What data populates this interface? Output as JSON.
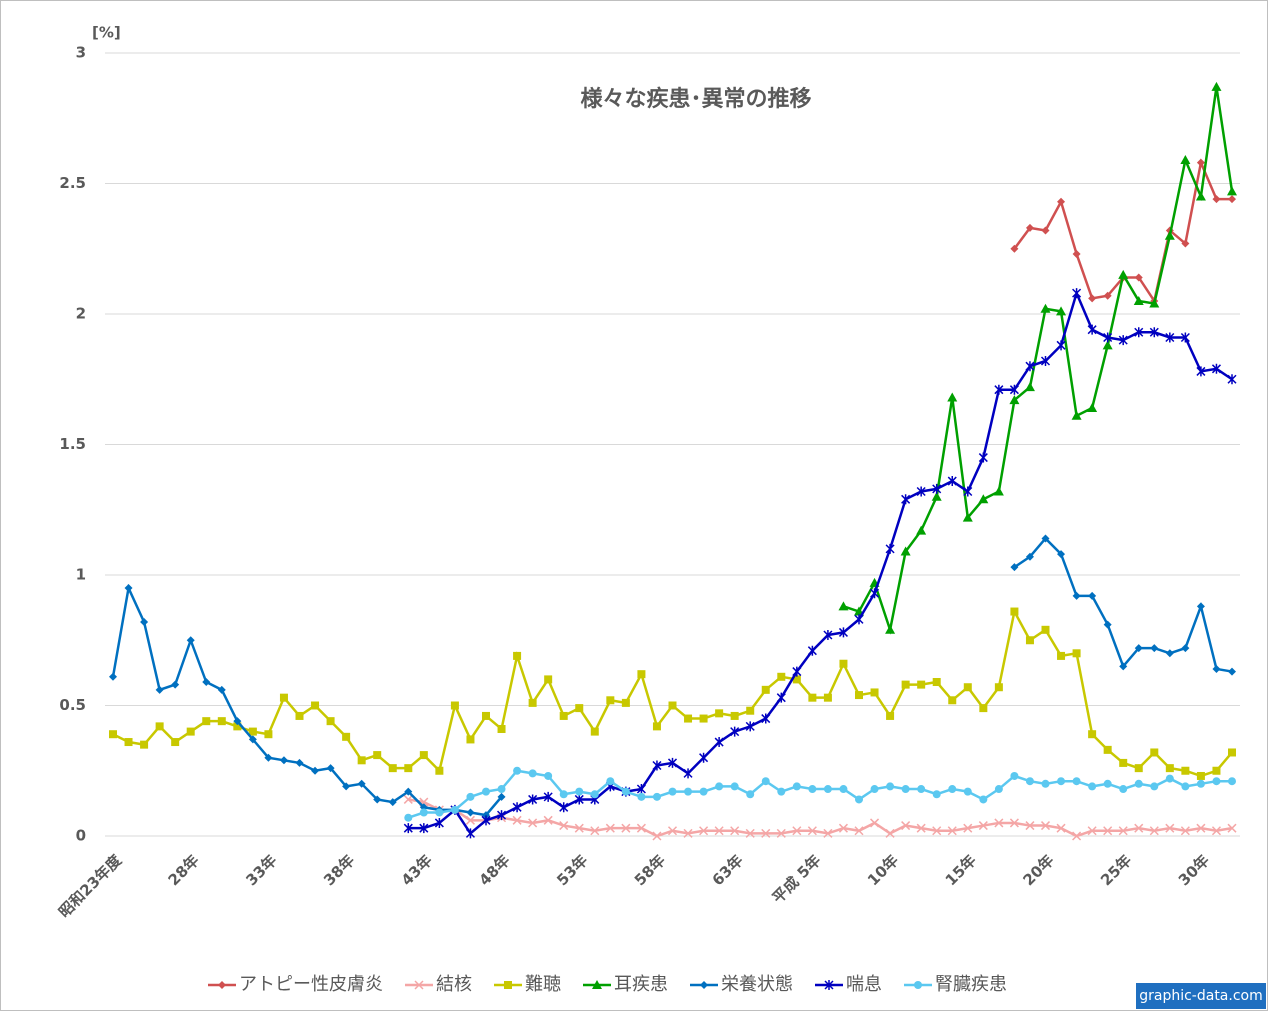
{
  "chart_data": {
    "type": "line",
    "title": "様々な疾患･異常の推移",
    "y_label": "[%]",
    "source": "graphic-data.com",
    "categories": [
      "昭和23年度",
      null,
      null,
      null,
      null,
      "28年",
      null,
      null,
      null,
      null,
      "33年",
      null,
      null,
      null,
      null,
      "38年",
      null,
      null,
      null,
      null,
      "43年",
      null,
      null,
      null,
      null,
      "48年",
      null,
      null,
      null,
      null,
      "53年",
      null,
      null,
      null,
      null,
      "58年",
      null,
      null,
      null,
      null,
      "63年",
      null,
      null,
      null,
      null,
      "平成 5年",
      null,
      null,
      null,
      null,
      "10年",
      null,
      null,
      null,
      null,
      "15年",
      null,
      null,
      null,
      null,
      "20年",
      null,
      null,
      null,
      null,
      "25年",
      null,
      null,
      null,
      null,
      "30年",
      null,
      null
    ],
    "ylim": [
      0,
      3
    ],
    "yticks": [
      0,
      0.5,
      1,
      1.5,
      2,
      2.5,
      3
    ],
    "grid": true,
    "legend": "bottom",
    "series": [
      {
        "name": "アトピー性皮膚炎",
        "color": "#d05050",
        "marker": "diamond",
        "values": [
          null,
          null,
          null,
          null,
          null,
          null,
          null,
          null,
          null,
          null,
          null,
          null,
          null,
          null,
          null,
          null,
          null,
          null,
          null,
          null,
          null,
          null,
          null,
          null,
          null,
          null,
          null,
          null,
          null,
          null,
          null,
          null,
          null,
          null,
          null,
          null,
          null,
          null,
          null,
          null,
          null,
          null,
          null,
          null,
          null,
          null,
          null,
          null,
          null,
          null,
          null,
          null,
          null,
          null,
          null,
          null,
          null,
          null,
          2.25,
          2.33,
          2.32,
          2.43,
          2.23,
          2.06,
          2.07,
          2.14,
          2.14,
          2.05,
          2.32,
          2.27,
          2.58,
          2.44,
          2.44
        ]
      },
      {
        "name": "結核",
        "color": "#f4a6a6",
        "marker": "x",
        "values": [
          null,
          null,
          null,
          null,
          null,
          null,
          null,
          null,
          null,
          null,
          null,
          null,
          null,
          null,
          null,
          null,
          null,
          null,
          null,
          0.14,
          0.13,
          0.1,
          0.1,
          0.06,
          0.06,
          0.07,
          0.06,
          0.05,
          0.06,
          0.04,
          0.03,
          0.02,
          0.03,
          0.03,
          0.03,
          0.0,
          0.02,
          0.01,
          0.02,
          0.02,
          0.02,
          0.01,
          0.01,
          0.01,
          0.02,
          0.02,
          0.01,
          0.03,
          0.02,
          0.05,
          0.01,
          0.04,
          0.03,
          0.02,
          0.02,
          0.03,
          0.04,
          0.05,
          0.05,
          0.04,
          0.04,
          0.03,
          0.0,
          0.02,
          0.02,
          0.02,
          0.03,
          0.02,
          0.03,
          0.02,
          0.03,
          0.02,
          0.03
        ]
      },
      {
        "name": "難聴",
        "color": "#c8c800",
        "marker": "square",
        "values": [
          0.39,
          0.36,
          0.35,
          0.42,
          0.36,
          0.4,
          0.44,
          0.44,
          0.42,
          0.4,
          0.39,
          0.53,
          0.46,
          0.5,
          0.44,
          0.38,
          0.29,
          0.31,
          0.26,
          0.26,
          0.31,
          0.25,
          0.5,
          0.37,
          0.46,
          0.41,
          0.69,
          0.51,
          0.6,
          0.46,
          0.49,
          0.4,
          0.52,
          0.51,
          0.62,
          0.42,
          0.5,
          0.45,
          0.45,
          0.47,
          0.46,
          0.48,
          0.56,
          0.61,
          0.6,
          0.53,
          0.53,
          0.66,
          0.54,
          0.55,
          0.46,
          0.58,
          0.58,
          0.59,
          0.52,
          0.57,
          0.49,
          0.57,
          0.86,
          0.75,
          0.79,
          0.69,
          0.7,
          0.39,
          0.33,
          0.28,
          0.26,
          0.32,
          0.26,
          0.25,
          0.23,
          0.25,
          0.32
        ]
      },
      {
        "name": "耳疾患",
        "color": "#00a000",
        "marker": "triangle",
        "values": [
          null,
          null,
          null,
          null,
          null,
          null,
          null,
          null,
          null,
          null,
          null,
          null,
          null,
          null,
          null,
          null,
          null,
          null,
          null,
          null,
          null,
          null,
          null,
          null,
          null,
          null,
          null,
          null,
          null,
          null,
          null,
          null,
          null,
          null,
          null,
          null,
          null,
          null,
          null,
          null,
          null,
          null,
          null,
          null,
          null,
          null,
          null,
          0.88,
          0.86,
          0.97,
          0.79,
          1.09,
          1.17,
          1.3,
          1.68,
          1.22,
          1.29,
          1.32,
          1.67,
          1.72,
          2.02,
          2.01,
          1.61,
          1.64,
          1.88,
          2.15,
          2.05,
          2.04,
          2.3,
          2.59,
          2.45,
          2.87,
          2.47
        ]
      },
      {
        "name": "栄養状態",
        "color": "#0070c0",
        "marker": "diamond",
        "values": [
          0.61,
          0.95,
          0.82,
          0.56,
          0.58,
          0.75,
          0.59,
          0.56,
          0.44,
          0.37,
          0.3,
          0.29,
          0.28,
          0.25,
          0.26,
          0.19,
          0.2,
          0.14,
          0.13,
          0.17,
          0.11,
          0.1,
          0.1,
          0.09,
          0.08,
          0.15,
          null,
          null,
          null,
          null,
          null,
          null,
          null,
          null,
          null,
          null,
          null,
          null,
          null,
          null,
          null,
          null,
          null,
          null,
          null,
          null,
          null,
          null,
          null,
          null,
          null,
          null,
          null,
          null,
          null,
          null,
          null,
          null,
          1.03,
          1.07,
          1.14,
          1.08,
          0.92,
          0.92,
          0.81,
          0.65,
          0.72,
          0.72,
          0.7,
          0.72,
          0.88,
          0.64,
          0.63
        ]
      },
      {
        "name": "喘息",
        "color": "#0000c0",
        "marker": "star",
        "values": [
          null,
          null,
          null,
          null,
          null,
          null,
          null,
          null,
          null,
          null,
          null,
          null,
          null,
          null,
          null,
          null,
          null,
          null,
          null,
          0.03,
          0.03,
          0.05,
          0.1,
          0.01,
          0.06,
          0.08,
          0.11,
          0.14,
          0.15,
          0.11,
          0.14,
          0.14,
          0.19,
          0.17,
          0.18,
          0.27,
          0.28,
          0.24,
          0.3,
          0.36,
          0.4,
          0.42,
          0.45,
          0.53,
          0.63,
          0.71,
          0.77,
          0.78,
          0.83,
          0.93,
          1.1,
          1.29,
          1.32,
          1.33,
          1.36,
          1.32,
          1.45,
          1.71,
          1.71,
          1.8,
          1.82,
          1.88,
          2.08,
          1.94,
          1.91,
          1.9,
          1.93,
          1.93,
          1.91,
          1.91,
          1.78,
          1.79,
          1.75
        ]
      },
      {
        "name": "腎臓疾患",
        "color": "#5bc8f0",
        "marker": "circle",
        "values": [
          null,
          null,
          null,
          null,
          null,
          null,
          null,
          null,
          null,
          null,
          null,
          null,
          null,
          null,
          null,
          null,
          null,
          null,
          null,
          0.07,
          0.09,
          0.09,
          0.1,
          0.15,
          0.17,
          0.18,
          0.25,
          0.24,
          0.23,
          0.16,
          0.17,
          0.16,
          0.21,
          0.17,
          0.15,
          0.15,
          0.17,
          0.17,
          0.17,
          0.19,
          0.19,
          0.16,
          0.21,
          0.17,
          0.19,
          0.18,
          0.18,
          0.18,
          0.14,
          0.18,
          0.19,
          0.18,
          0.18,
          0.16,
          0.18,
          0.17,
          0.14,
          0.18,
          0.23,
          0.21,
          0.2,
          0.21,
          0.21,
          0.19,
          0.2,
          0.18,
          0.2,
          0.19,
          0.22,
          0.19,
          0.2,
          0.21,
          0.21
        ]
      }
    ]
  }
}
